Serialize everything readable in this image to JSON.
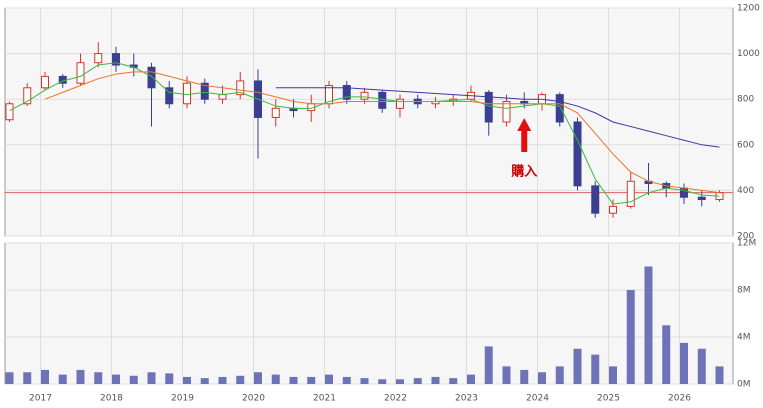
{
  "chart_data": [
    {
      "type": "candlestick",
      "open": [
        710,
        780,
        850,
        900,
        870,
        960,
        1000,
        950,
        940,
        850,
        780,
        870,
        800,
        820,
        880,
        720,
        760,
        750,
        780,
        860,
        800,
        830,
        760,
        800,
        780,
        790,
        800,
        830,
        700,
        790,
        780,
        820,
        700,
        420,
        300,
        330,
        440,
        430,
        410,
        370,
        360
      ],
      "high": [
        790,
        870,
        920,
        910,
        1000,
        1050,
        1030,
        1000,
        960,
        880,
        900,
        890,
        860,
        920,
        930,
        800,
        800,
        820,
        880,
        880,
        850,
        840,
        820,
        820,
        810,
        820,
        860,
        840,
        820,
        830,
        830,
        830,
        720,
        440,
        360,
        480,
        520,
        440,
        430,
        400,
        400
      ],
      "low": [
        700,
        770,
        840,
        850,
        860,
        940,
        920,
        900,
        680,
        760,
        760,
        780,
        780,
        800,
        540,
        680,
        720,
        700,
        760,
        780,
        780,
        740,
        720,
        760,
        760,
        770,
        790,
        640,
        680,
        760,
        750,
        680,
        400,
        280,
        280,
        320,
        380,
        370,
        340,
        330,
        350
      ],
      "close": [
        780,
        850,
        900,
        870,
        960,
        1000,
        950,
        940,
        850,
        780,
        870,
        800,
        820,
        880,
        720,
        760,
        750,
        780,
        860,
        800,
        830,
        760,
        800,
        780,
        790,
        800,
        830,
        700,
        790,
        780,
        820,
        700,
        420,
        300,
        330,
        440,
        430,
        410,
        370,
        360,
        390
      ],
      "up_color": "#d9342b",
      "down_color": "#3a3f91",
      "series": [
        {
          "color": "#3cb93c",
          "values": [
            750,
            790,
            840,
            880,
            900,
            950,
            960,
            940,
            900,
            830,
            820,
            830,
            820,
            830,
            800,
            770,
            760,
            760,
            790,
            810,
            810,
            800,
            790,
            790,
            790,
            795,
            800,
            770,
            760,
            770,
            780,
            770,
            620,
            450,
            340,
            350,
            390,
            410,
            400,
            380,
            375
          ]
        },
        {
          "color": "#e8762d",
          "values": [
            null,
            null,
            800,
            830,
            860,
            890,
            910,
            920,
            920,
            900,
            880,
            860,
            850,
            840,
            830,
            810,
            790,
            780,
            780,
            790,
            790,
            790,
            790,
            790,
            790,
            790,
            790,
            780,
            780,
            780,
            780,
            780,
            740,
            650,
            560,
            480,
            440,
            420,
            410,
            400,
            390
          ]
        },
        {
          "color": "#3b3b9e",
          "values": [
            null,
            null,
            null,
            null,
            null,
            null,
            null,
            null,
            null,
            null,
            null,
            null,
            null,
            null,
            null,
            850,
            850,
            850,
            850,
            850,
            845,
            840,
            835,
            830,
            825,
            820,
            815,
            810,
            805,
            800,
            800,
            790,
            770,
            740,
            700,
            680,
            660,
            640,
            620,
            600,
            590
          ]
        }
      ],
      "hline": 390,
      "hline_color": "#e06060",
      "annotation": "購入",
      "ylim": [
        200,
        1200
      ],
      "yticks": [
        200,
        400,
        600,
        800,
        1000,
        1200
      ],
      "grid": true
    },
    {
      "type": "bar",
      "color": "#6e73b8",
      "categories": [
        null,
        null,
        "2017",
        null,
        null,
        null,
        "2018",
        null,
        null,
        null,
        "2019",
        null,
        null,
        null,
        "2020",
        null,
        null,
        null,
        "2021",
        null,
        null,
        null,
        "2022",
        null,
        null,
        null,
        "2023",
        null,
        null,
        null,
        "2024",
        null,
        null,
        null,
        "2025",
        null,
        null,
        null,
        "2026",
        null,
        null
      ],
      "values": [
        1,
        1,
        1.2,
        0.8,
        1.2,
        1,
        0.8,
        0.7,
        1,
        0.9,
        0.6,
        0.5,
        0.6,
        0.7,
        1,
        0.8,
        0.6,
        0.6,
        0.8,
        0.6,
        0.5,
        0.4,
        0.4,
        0.5,
        0.6,
        0.5,
        0.8,
        3.2,
        1.5,
        1.2,
        1,
        1.5,
        3,
        2.5,
        1.5,
        8,
        10,
        5,
        3.5,
        3,
        1.5
      ],
      "ylim": [
        0,
        12
      ],
      "yticks": [
        {
          "value": 0,
          "label": "0M"
        },
        {
          "value": 4,
          "label": "4M"
        },
        {
          "value": 8,
          "label": "8M"
        },
        {
          "value": 12,
          "label": "12M"
        }
      ],
      "grid": true
    }
  ]
}
